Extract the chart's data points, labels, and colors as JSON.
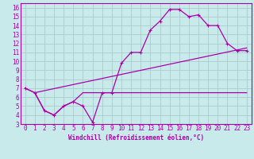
{
  "xlabel": "Windchill (Refroidissement éolien,°C)",
  "background_color": "#c8eaea",
  "line_color": "#aa00aa",
  "grid_color": "#aacccc",
  "xlim": [
    -0.5,
    23.5
  ],
  "ylim": [
    3,
    16.5
  ],
  "xticks": [
    0,
    1,
    2,
    3,
    4,
    5,
    6,
    7,
    8,
    9,
    10,
    11,
    12,
    13,
    14,
    15,
    16,
    17,
    18,
    19,
    20,
    21,
    22,
    23
  ],
  "yticks": [
    3,
    4,
    5,
    6,
    7,
    8,
    9,
    10,
    11,
    12,
    13,
    14,
    15,
    16
  ],
  "line1_x": [
    0,
    1,
    2,
    3,
    4,
    5,
    6,
    7,
    8,
    9,
    10,
    11,
    12,
    13,
    14,
    15,
    16,
    17,
    18,
    19,
    20,
    21,
    22,
    23
  ],
  "line1_y": [
    7.0,
    6.5,
    4.5,
    4.0,
    5.0,
    5.5,
    5.0,
    3.2,
    6.5,
    6.5,
    9.8,
    11.0,
    11.0,
    13.5,
    14.5,
    15.8,
    15.8,
    15.0,
    15.2,
    14.0,
    14.0,
    12.0,
    11.2,
    11.2
  ],
  "line2_x": [
    0,
    1,
    2,
    3,
    4,
    5,
    6,
    8,
    9,
    10,
    11,
    12,
    13,
    14,
    15,
    16,
    17,
    18,
    19,
    20,
    21,
    22,
    23
  ],
  "line2_y": [
    7.0,
    6.5,
    4.5,
    4.0,
    5.0,
    5.5,
    6.5,
    6.5,
    6.5,
    6.5,
    6.5,
    6.5,
    6.5,
    6.5,
    6.5,
    6.5,
    6.5,
    6.5,
    6.5,
    6.5,
    6.5,
    6.5,
    6.5
  ],
  "line3_x": [
    1,
    23
  ],
  "line3_y": [
    6.5,
    11.5
  ],
  "tick_fontsize": 5.5,
  "label_fontsize": 5.5
}
